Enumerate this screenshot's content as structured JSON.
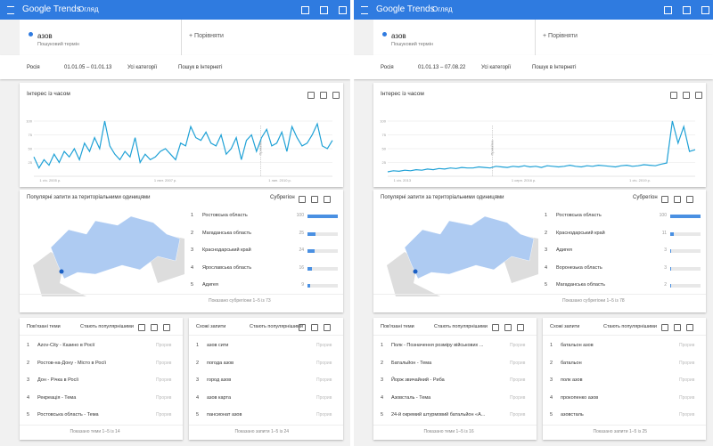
{
  "panels": [
    {
      "app": "Google Trends",
      "nav": "Огляд",
      "term": "азов",
      "term_type": "Пошуковий термін",
      "compare": "Порівняти",
      "filters": [
        "Росія",
        "01.01.05 – 01.01.13",
        "Усі категорії",
        "Пошук в Інтернеті"
      ],
      "chart_data": {
        "type": "line",
        "title": "Інтерес із часом",
        "annotation": "Примітка",
        "xticks": [
          "1 січ. 2005 р.",
          "1 лют. 2007 р.",
          "1 лип. 2010 р."
        ],
        "ylim": [
          0,
          100
        ],
        "yticks": [
          25,
          50,
          75,
          100
        ],
        "color": "#1fa1d6",
        "values": [
          35,
          15,
          30,
          20,
          40,
          25,
          45,
          35,
          50,
          30,
          60,
          45,
          70,
          50,
          100,
          55,
          40,
          30,
          45,
          35,
          70,
          25,
          40,
          30,
          35,
          45,
          50,
          40,
          30,
          60,
          55,
          90,
          70,
          65,
          80,
          60,
          55,
          75,
          40,
          50,
          70,
          30,
          65,
          75,
          45,
          70,
          85,
          55,
          60,
          80,
          45,
          90,
          70,
          55,
          60,
          75,
          95,
          55,
          50,
          65
        ]
      },
      "regions": {
        "title": "Популярні запити за територіальними одиницями",
        "mode": "Субрегіон",
        "rows": [
          {
            "rank": 1,
            "name": "Ростовська область",
            "value": 100
          },
          {
            "rank": 2,
            "name": "Магаданська область",
            "value": 25
          },
          {
            "rank": 3,
            "name": "Краснодарський край",
            "value": 24
          },
          {
            "rank": 4,
            "name": "Ярославська область",
            "value": 16
          },
          {
            "rank": 5,
            "name": "Адигея",
            "value": 9
          }
        ],
        "footer": "Показано субрегіони 1–5 із 73"
      },
      "topics": {
        "title": "Пов'язані теми",
        "mode": "Стають популярнішими",
        "rows": [
          {
            "rank": 1,
            "label": "Azov-City - Казино в Росії",
            "value": "Прорив"
          },
          {
            "rank": 2,
            "label": "Ростов-на-Дону - Місто в Росії",
            "value": "Прорив"
          },
          {
            "rank": 3,
            "label": "Дон - Річка в Росії",
            "value": "Прорив"
          },
          {
            "rank": 4,
            "label": "Рекреація - Тема",
            "value": "Прорив"
          },
          {
            "rank": 5,
            "label": "Ростовська область - Тема",
            "value": "Прорив"
          }
        ],
        "footer": "Показано теми 1–5 із 14"
      },
      "queries": {
        "title": "Схожі запити",
        "mode": "Стають популярнішими",
        "rows": [
          {
            "rank": 1,
            "label": "азов сити",
            "value": "Прорив"
          },
          {
            "rank": 2,
            "label": "погода азов",
            "value": "Прорив"
          },
          {
            "rank": 3,
            "label": "город азов",
            "value": "Прорив"
          },
          {
            "rank": 4,
            "label": "азов карта",
            "value": "Прорив"
          },
          {
            "rank": 5,
            "label": "пансионат азов",
            "value": "Прорив"
          }
        ],
        "footer": "Показано запити 1–5 із 24"
      }
    },
    {
      "app": "Google Trends",
      "nav": "Огляд",
      "term": "азов",
      "term_type": "Пошуковий термін",
      "compare": "Порівняти",
      "filters": [
        "Росія",
        "01.01.13 – 07.08.22",
        "Усі категорії",
        "Пошук в Інтернеті"
      ],
      "chart_data": {
        "type": "line",
        "title": "Інтерес із часом",
        "annotation": "Примітка",
        "xticks": [
          "1 січ. 2013",
          "1 серп. 2016 р.",
          "1 січ. 2019 р."
        ],
        "ylim": [
          0,
          100
        ],
        "yticks": [
          25,
          50,
          75,
          100
        ],
        "color": "#1fa1d6",
        "values": [
          8,
          10,
          9,
          11,
          10,
          12,
          11,
          13,
          12,
          14,
          13,
          15,
          14,
          16,
          15,
          15,
          17,
          16,
          15,
          18,
          17,
          16,
          18,
          17,
          19,
          17,
          18,
          16,
          19,
          18,
          17,
          18,
          20,
          18,
          17,
          19,
          18,
          20,
          19,
          18,
          17,
          19,
          20,
          18,
          19,
          21,
          20,
          19,
          22,
          24,
          100,
          60,
          90,
          45,
          48
        ]
      },
      "regions": {
        "title": "Популярні запити за територіальними одиницями",
        "mode": "Субрегіон",
        "rows": [
          {
            "rank": 1,
            "name": "Ростовська область",
            "value": 100
          },
          {
            "rank": 2,
            "name": "Краснодарський край",
            "value": 11
          },
          {
            "rank": 3,
            "name": "Адигея",
            "value": 3
          },
          {
            "rank": 4,
            "name": "Воронезька область",
            "value": 3
          },
          {
            "rank": 5,
            "name": "Магаданська область",
            "value": 2
          }
        ],
        "footer": "Показано субрегіони 1–5 із 78"
      },
      "topics": {
        "title": "Пов'язані теми",
        "mode": "Стають популярнішими",
        "rows": [
          {
            "rank": 1,
            "label": "Полк - Позначення розміру військових ...",
            "value": "Прорив"
          },
          {
            "rank": 2,
            "label": "Батальйон - Тема",
            "value": "Прорив"
          },
          {
            "rank": 3,
            "label": "Йорж звичайний - Риба",
            "value": "Прорив"
          },
          {
            "rank": 4,
            "label": "Азовсталь - Тема",
            "value": "Прорив"
          },
          {
            "rank": 5,
            "label": "24-й окремий штурмовий батальйон «А...",
            "value": "Прорив"
          }
        ],
        "footer": "Показано теми 1–5 із 16"
      },
      "queries": {
        "title": "Схожі запити",
        "mode": "Стають популярнішими",
        "rows": [
          {
            "rank": 1,
            "label": "батальон азов",
            "value": "Прорив"
          },
          {
            "rank": 2,
            "label": "батальон",
            "value": "Прорив"
          },
          {
            "rank": 3,
            "label": "полк азов",
            "value": "Прорив"
          },
          {
            "rank": 4,
            "label": "прокопенко азов",
            "value": "Прорив"
          },
          {
            "rank": 5,
            "label": "азовсталь",
            "value": "Прорив"
          }
        ],
        "footer": "Показано запити 1–5 із 25"
      }
    }
  ]
}
